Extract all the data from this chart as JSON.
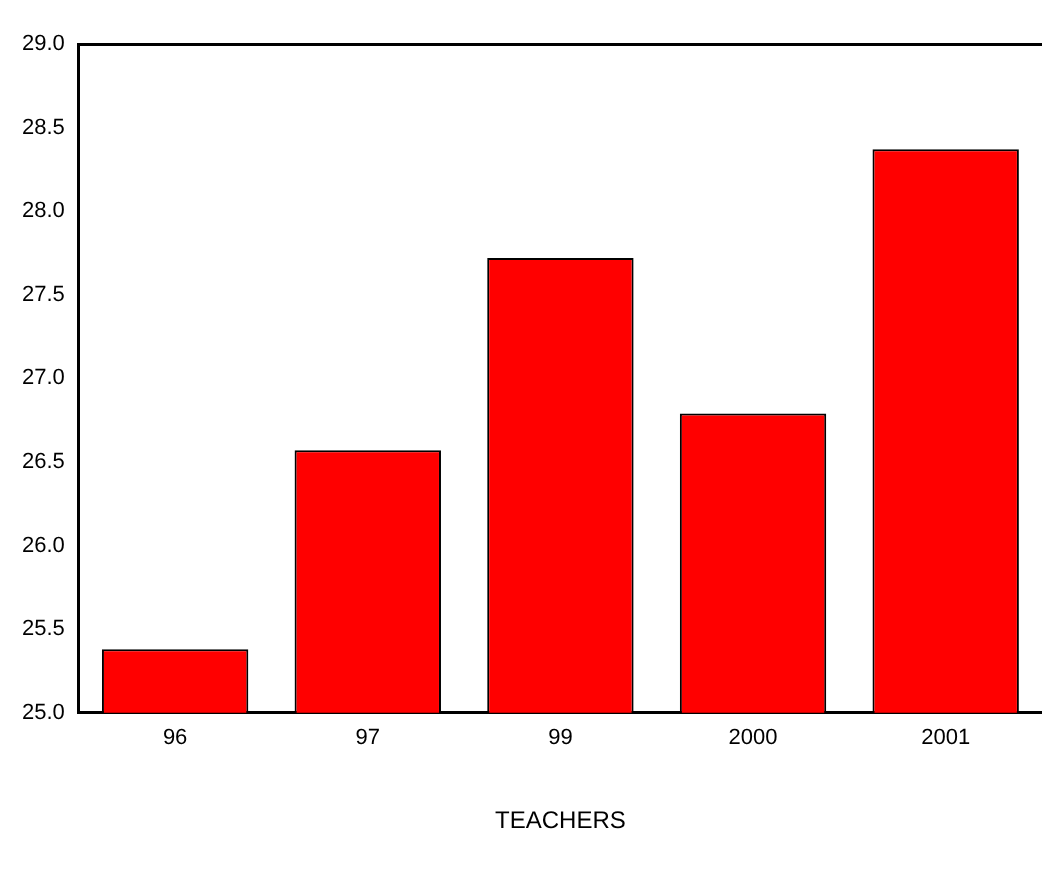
{
  "chart_data": {
    "type": "bar",
    "xlabel": "TEACHERS",
    "categories": [
      "96",
      "97",
      "99",
      "2000",
      "2001"
    ],
    "values": [
      25.38,
      26.57,
      27.72,
      26.79,
      28.37
    ],
    "color": "#ff0000",
    "ylim": [
      25,
      29
    ],
    "yticks": [
      {
        "value": 25,
        "label": "25.0"
      },
      {
        "value": 25.5,
        "label": "25.5"
      },
      {
        "value": 26,
        "label": "26.0"
      },
      {
        "value": 26.5,
        "label": "26.5"
      },
      {
        "value": 27,
        "label": "27.0"
      },
      {
        "value": 27.5,
        "label": "27.5"
      },
      {
        "value": 28,
        "label": "28.0"
      },
      {
        "value": 28.5,
        "label": "28.5"
      },
      {
        "value": 29,
        "label": "29.0"
      }
    ],
    "grid": false
  }
}
